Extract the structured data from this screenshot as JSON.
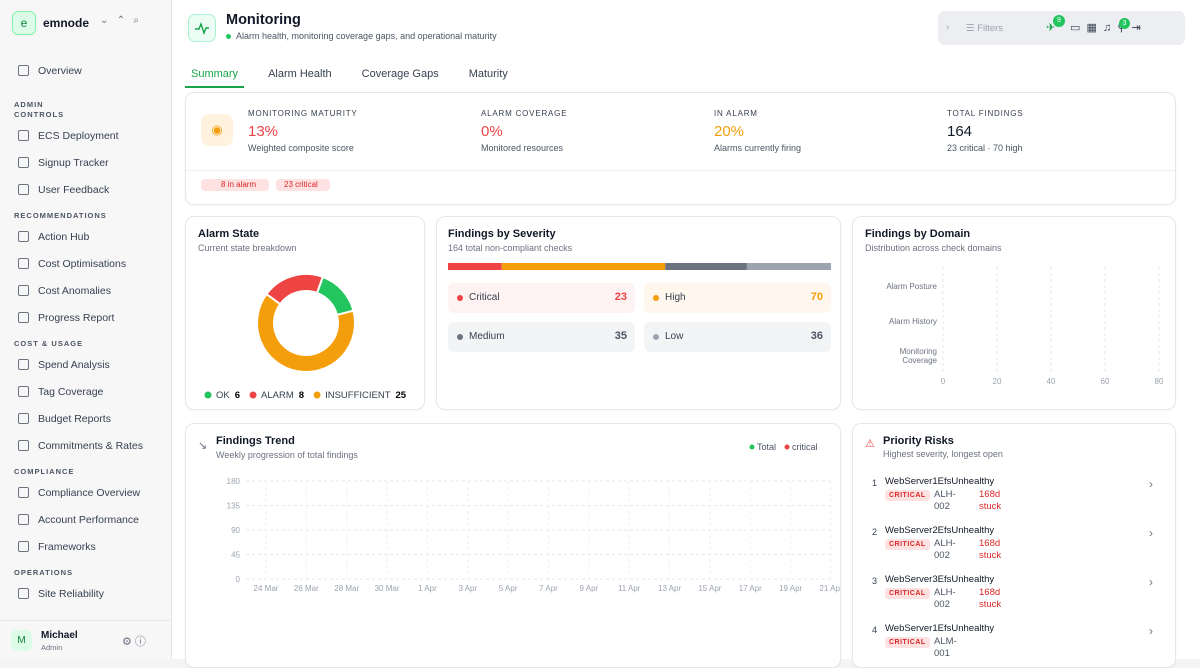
{
  "sidebar": {
    "brand_initial": "e",
    "brand": "emnode",
    "top": [
      "Overview"
    ],
    "sections": [
      {
        "title": "ADMIN CONTROLS",
        "items": [
          "ECS Deployment",
          "Signup Tracker",
          "User Feedback"
        ]
      },
      {
        "title": "RECOMMENDATIONS",
        "items": [
          "Action Hub",
          "Cost Optimisations",
          "Cost Anomalies",
          "Progress Report"
        ]
      },
      {
        "title": "COST & USAGE",
        "items": [
          "Spend Analysis",
          "Tag Coverage",
          "Budget Reports",
          "Commitments & Rates"
        ]
      },
      {
        "title": "COMPLIANCE",
        "items": [
          "Compliance Overview",
          "Account Performance",
          "Frameworks"
        ]
      },
      {
        "title": "OPERATIONS",
        "items": [
          "Site Reliability"
        ]
      }
    ],
    "user": {
      "initial": "M",
      "name": "Michael",
      "role": "Admin"
    }
  },
  "header": {
    "title": "Monitoring",
    "subtitle": "Alarm health, monitoring coverage gaps, and operational maturity",
    "filters": "Filters",
    "badges": [
      9,
      3
    ]
  },
  "tabs": [
    "Summary",
    "Alarm Health",
    "Coverage Gaps",
    "Maturity"
  ],
  "stats": [
    {
      "label": "MONITORING MATURITY",
      "value": "13%",
      "note": "Weighted composite score",
      "color": "#ef4444"
    },
    {
      "label": "ALARM COVERAGE",
      "value": "0%",
      "note": "Monitored resources",
      "color": "#ef4444"
    },
    {
      "label": "IN ALARM",
      "value": "20%",
      "note": "Alarms currently firing",
      "color": "#f59e0b"
    },
    {
      "label": "TOTAL FINDINGS",
      "value": "164",
      "note": "23 critical · 70 high",
      "color": "#111827"
    }
  ],
  "chips": [
    "8 in alarm",
    "23 critical"
  ],
  "alarm_state": {
    "type": "pie",
    "title": "Alarm State",
    "subtitle": "Current state breakdown",
    "categories": [
      "OK",
      "ALARM",
      "INSUFFICIENT"
    ],
    "values": [
      6,
      8,
      25
    ],
    "colors": [
      "#22c55e",
      "#ef4444",
      "#f59e0b"
    ]
  },
  "severity": {
    "type": "bar",
    "title": "Findings by Severity",
    "subtitle": "164 total non-compliant checks",
    "categories": [
      "Critical",
      "High",
      "Medium",
      "Low"
    ],
    "values": [
      23,
      70,
      35,
      36
    ],
    "colors": [
      "#ef4444",
      "#f59e0b",
      "#6b7280",
      "#9ca3af"
    ]
  },
  "domain": {
    "type": "bar",
    "title": "Findings by Domain",
    "subtitle": "Distribution across check domains",
    "categories": [
      "Alarm Posture",
      "Alarm History",
      "Monitoring Coverage"
    ],
    "xlim": [
      0,
      80
    ],
    "xticks": [
      0,
      20,
      40,
      60,
      80
    ]
  },
  "trend": {
    "type": "line",
    "title": "Findings Trend",
    "subtitle": "Weekly progression of total findings",
    "categories": [
      "24 Mar",
      "26 Mar",
      "28 Mar",
      "30 Mar",
      "1 Apr",
      "3 Apr",
      "5 Apr",
      "7 Apr",
      "9 Apr",
      "11 Apr",
      "13 Apr",
      "15 Apr",
      "17 Apr",
      "19 Apr",
      "21 Apr"
    ],
    "series": [
      {
        "name": "Total",
        "color": "#22c55e"
      },
      {
        "name": "critical",
        "color": "#ef4444"
      }
    ],
    "ylim": [
      0,
      180
    ],
    "yticks": [
      0,
      45,
      90,
      135,
      180
    ]
  },
  "risks": {
    "title": "Priority Risks",
    "subtitle": "Highest severity, longest open",
    "items": [
      {
        "rank": 1,
        "name": "WebServer1EfsUnhealthy",
        "severity": "CRITICAL",
        "id": "ALH-002",
        "age": "168d stuck"
      },
      {
        "rank": 2,
        "name": "WebServer2EfsUnhealthy",
        "severity": "CRITICAL",
        "id": "ALH-002",
        "age": "168d stuck"
      },
      {
        "rank": 3,
        "name": "WebServer3EfsUnhealthy",
        "severity": "CRITICAL",
        "id": "ALH-002",
        "age": "168d stuck"
      },
      {
        "rank": 4,
        "name": "WebServer1EfsUnhealthy",
        "severity": "CRITICAL",
        "id": "ALM-001"
      }
    ]
  }
}
